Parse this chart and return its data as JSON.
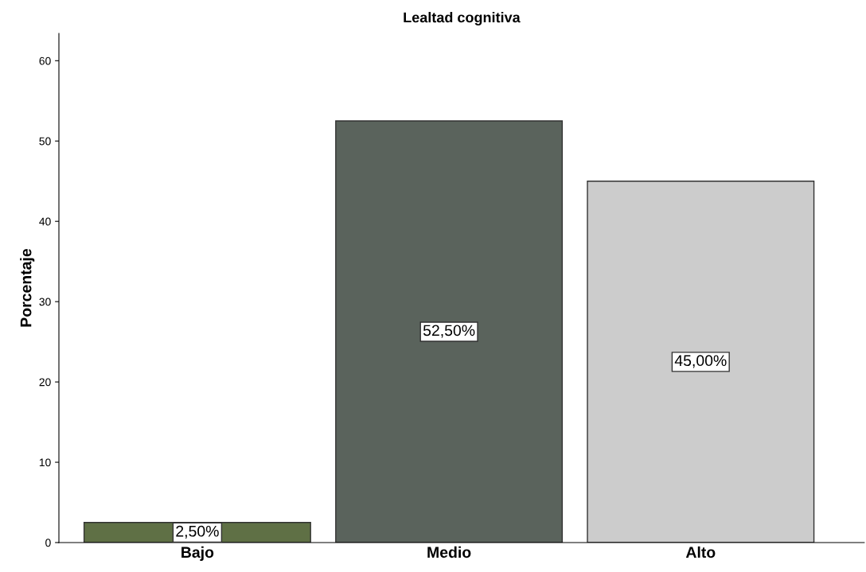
{
  "chart_data": {
    "type": "bar",
    "title": "Lealtad cognitiva",
    "ylabel": "Porcentaje",
    "categories": [
      "Bajo",
      "Medio",
      "Alto"
    ],
    "values": [
      2.5,
      52.5,
      45.0
    ],
    "colors": [
      "#5f7045",
      "#5a635c",
      "#cccccc"
    ],
    "value_labels": [
      "2,50%",
      "52,50%",
      "45,00%"
    ],
    "ylim": [
      0,
      63.4
    ],
    "yticks": [
      0,
      10,
      20,
      30,
      40,
      50,
      60
    ],
    "grid": false,
    "legend": false
  }
}
